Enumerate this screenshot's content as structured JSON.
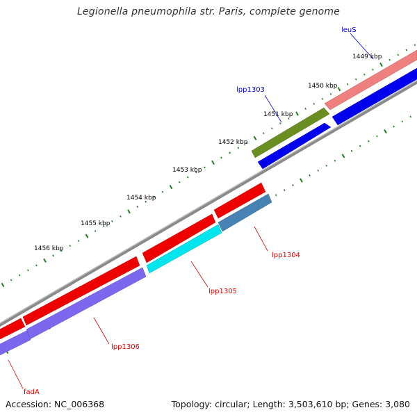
{
  "title": "Legionella pneumophila str. Paris, complete genome",
  "footer": {
    "accession": "Accession: NC_006368",
    "summary": "Topology: circular; Length: 3,503,610 bp; Genes: 3,080"
  },
  "scale_labels": [
    "1449 kbp",
    "1450 kbp",
    "1451 kbp",
    "1452 kbp",
    "1453 kbp",
    "1454 kbp",
    "1455 kbp",
    "1456 kbp"
  ],
  "genes": [
    {
      "name": "leuS",
      "strand": "forward",
      "color": "#0000dd"
    },
    {
      "name": "lpp1303",
      "strand": "forward",
      "color": "#0000dd"
    },
    {
      "name": "lpp1304",
      "strand": "reverse",
      "color": "#dd0000"
    },
    {
      "name": "lpp1305",
      "strand": "reverse",
      "color": "#dd0000"
    },
    {
      "name": "lpp1306",
      "strand": "reverse",
      "color": "#dd0000"
    },
    {
      "name": "fadA",
      "strand": "reverse",
      "color": "#dd0000"
    }
  ],
  "colors": {
    "backbone": "#8a8a8a",
    "tick": "#1f7a1f",
    "forward_cds": "#0000ee",
    "reverse_cds": "#ee0000",
    "trna": "#ee8080",
    "olive_feature": "#6b8e23",
    "cyan_feature": "#00e5ee",
    "steelblue_feature": "#4682b4",
    "purple_feature": "#7b68ee"
  }
}
